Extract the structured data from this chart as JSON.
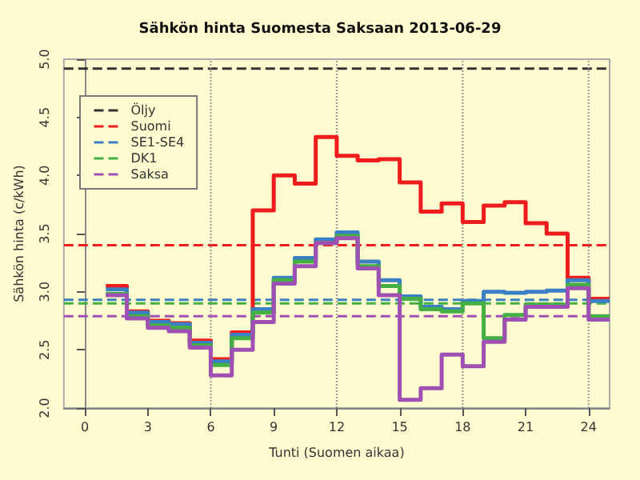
{
  "chart_data": {
    "type": "step",
    "title": "Sähkön hinta Suomesta Saksaan 2013-06-29",
    "xlabel": "Tunti (Suomen aikaa)",
    "ylabel": "Sähkön hinta (c/kWh)",
    "x": [
      1,
      2,
      3,
      4,
      5,
      6,
      7,
      8,
      9,
      10,
      11,
      12,
      13,
      14,
      15,
      16,
      17,
      18,
      19,
      20,
      21,
      22,
      23,
      24,
      25
    ],
    "xlim": [
      -1,
      25
    ],
    "xticks": [
      0,
      3,
      6,
      9,
      12,
      15,
      18,
      21,
      24
    ],
    "ylim": [
      2.0,
      5.0
    ],
    "yticks": [
      {
        "value": 2,
        "label": "2.0"
      },
      2.5,
      {
        "value": 3,
        "label": "3.0"
      },
      3.5,
      {
        "value": 4,
        "label": "4.0"
      },
      4.5,
      {
        "value": 5,
        "label": "5.0"
      }
    ],
    "grid": false,
    "legend": "top left",
    "line_style": "solid",
    "marker": "none",
    "series": [
      {
        "name": "Suomi",
        "color": "#ee1c1c",
        "values": [
          3.05,
          2.83,
          2.75,
          2.73,
          2.58,
          2.42,
          2.65,
          3.7,
          4.0,
          3.93,
          4.33,
          4.17,
          4.13,
          4.14,
          3.94,
          3.69,
          3.76,
          3.6,
          3.74,
          3.77,
          3.59,
          3.5,
          3.12,
          2.94,
          2.94
        ]
      },
      {
        "name": "SE1-SE4",
        "color": "#3b80c4",
        "values": [
          3.02,
          2.82,
          2.74,
          2.72,
          2.56,
          2.4,
          2.63,
          2.85,
          3.12,
          3.29,
          3.45,
          3.51,
          3.26,
          3.1,
          2.96,
          2.87,
          2.85,
          2.92,
          3.0,
          2.99,
          3.0,
          3.01,
          3.1,
          2.92,
          2.92
        ]
      },
      {
        "name": "DK1",
        "color": "#44b044",
        "values": [
          2.98,
          2.79,
          2.71,
          2.69,
          2.54,
          2.37,
          2.6,
          2.82,
          3.1,
          3.26,
          3.42,
          3.48,
          3.22,
          3.05,
          2.94,
          2.85,
          2.83,
          2.9,
          2.6,
          2.8,
          2.89,
          2.89,
          3.06,
          2.79,
          2.79
        ]
      },
      {
        "name": "Saksa",
        "color": "#a050b4",
        "values": [
          2.97,
          2.77,
          2.69,
          2.66,
          2.52,
          2.28,
          2.5,
          2.74,
          3.07,
          3.22,
          3.42,
          3.46,
          3.2,
          2.97,
          2.07,
          2.17,
          2.46,
          2.36,
          2.57,
          2.76,
          2.87,
          2.87,
          3.03,
          2.76,
          2.76
        ]
      }
    ],
    "ref_lines": [
      {
        "axis": "y",
        "value": 4.92,
        "label": "Öljy",
        "color": "#333333",
        "line_style": "dashed"
      },
      {
        "axis": "y",
        "value": 3.4,
        "color": "#ee1c1c",
        "line_style": "dashed"
      },
      {
        "axis": "y",
        "value": 2.93,
        "color": "#3b80c4",
        "line_style": "dashed"
      },
      {
        "axis": "y",
        "value": 2.9,
        "color": "#44b044",
        "line_style": "dashed"
      },
      {
        "axis": "y",
        "value": 2.79,
        "color": "#a050b4",
        "line_style": "dashed"
      },
      {
        "axis": "x",
        "value": 6,
        "color": "#999999",
        "line_style": "dotted"
      },
      {
        "axis": "x",
        "value": 12,
        "color": "#999999",
        "line_style": "dotted"
      },
      {
        "axis": "x",
        "value": 18,
        "color": "#999999",
        "line_style": "dotted"
      },
      {
        "axis": "x",
        "value": 24,
        "color": "#999999",
        "line_style": "dotted"
      }
    ]
  }
}
